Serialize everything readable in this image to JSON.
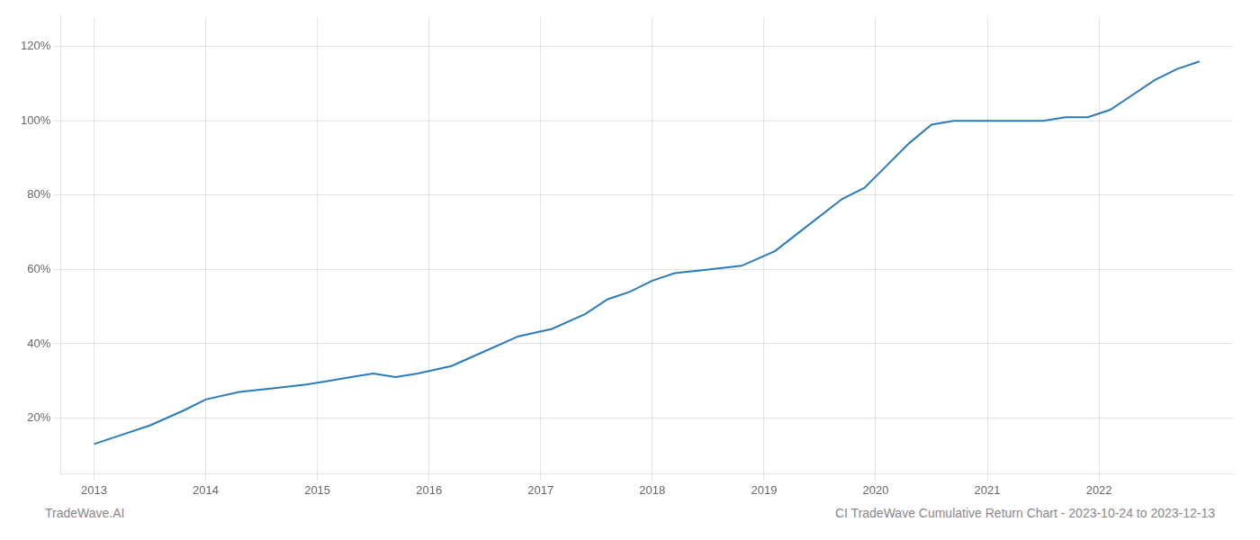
{
  "chart_data": {
    "type": "line",
    "x": [
      2013,
      2013.2,
      2013.5,
      2013.8,
      2014.0,
      2014.3,
      2014.6,
      2014.9,
      2015.1,
      2015.3,
      2015.5,
      2015.7,
      2015.9,
      2016.2,
      2016.5,
      2016.8,
      2017.1,
      2017.4,
      2017.6,
      2017.8,
      2018.0,
      2018.2,
      2018.5,
      2018.8,
      2019.1,
      2019.4,
      2019.7,
      2019.9,
      2020.1,
      2020.3,
      2020.5,
      2020.7,
      2020.9,
      2021.1,
      2021.3,
      2021.5,
      2021.7,
      2021.9,
      2022.1,
      2022.3,
      2022.5,
      2022.7,
      2022.9
    ],
    "values": [
      0.13,
      0.15,
      0.18,
      0.22,
      0.25,
      0.27,
      0.28,
      0.29,
      0.3,
      0.31,
      0.32,
      0.31,
      0.32,
      0.34,
      0.38,
      0.42,
      0.44,
      0.48,
      0.52,
      0.54,
      0.57,
      0.59,
      0.6,
      0.61,
      0.65,
      0.72,
      0.79,
      0.82,
      0.88,
      0.94,
      0.99,
      1.0,
      1.0,
      1.0,
      1.0,
      1.0,
      1.01,
      1.01,
      1.03,
      1.07,
      1.11,
      1.14,
      1.16
    ],
    "color": "#2b7bb9",
    "xlim": [
      2012.7,
      2023.2
    ],
    "xticks": [
      2013,
      2014,
      2015,
      2016,
      2017,
      2018,
      2019,
      2020,
      2021,
      2022
    ],
    "ylim": [
      0.05,
      1.28
    ],
    "yticks": [
      {
        "value": 0.2,
        "label": "20%"
      },
      {
        "value": 0.4,
        "label": "40%"
      },
      {
        "value": 0.6,
        "label": "60%"
      },
      {
        "value": 0.8,
        "label": "80%"
      },
      {
        "value": 1.0,
        "label": "100%"
      },
      {
        "value": 1.2,
        "label": "120%"
      }
    ],
    "grid": true,
    "annotations": [
      "TradeWave.AI",
      "CI TradeWave Cumulative Return Chart - 2023-10-24 to 2023-12-13"
    ]
  }
}
